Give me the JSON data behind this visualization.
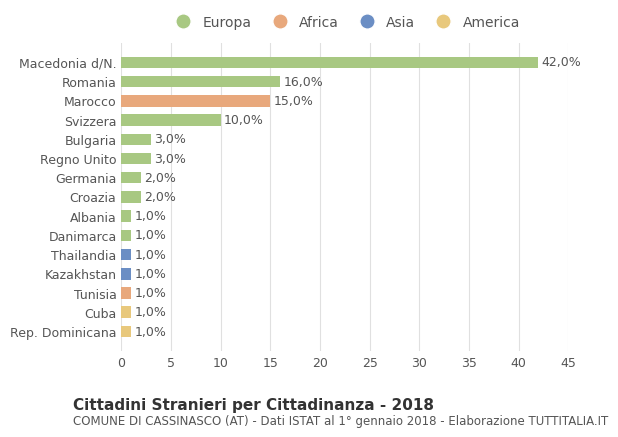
{
  "countries": [
    "Macedonia d/N.",
    "Romania",
    "Marocco",
    "Svizzera",
    "Bulgaria",
    "Regno Unito",
    "Germania",
    "Croazia",
    "Albania",
    "Danimarca",
    "Thailandia",
    "Kazakhstan",
    "Tunisia",
    "Cuba",
    "Rep. Dominicana"
  ],
  "values": [
    42.0,
    16.0,
    15.0,
    10.0,
    3.0,
    3.0,
    2.0,
    2.0,
    1.0,
    1.0,
    1.0,
    1.0,
    1.0,
    1.0,
    1.0
  ],
  "labels": [
    "42,0%",
    "16,0%",
    "15,0%",
    "10,0%",
    "3,0%",
    "3,0%",
    "2,0%",
    "2,0%",
    "1,0%",
    "1,0%",
    "1,0%",
    "1,0%",
    "1,0%",
    "1,0%",
    "1,0%"
  ],
  "continents": [
    "Europa",
    "Europa",
    "Africa",
    "Europa",
    "Europa",
    "Europa",
    "Europa",
    "Europa",
    "Europa",
    "Europa",
    "Asia",
    "Asia",
    "Africa",
    "America",
    "America"
  ],
  "continent_colors": {
    "Europa": "#a8c882",
    "Africa": "#e8a87c",
    "Asia": "#6b8ec4",
    "America": "#e8c87c"
  },
  "legend_order": [
    "Europa",
    "Africa",
    "Asia",
    "America"
  ],
  "xlim": [
    0,
    45
  ],
  "xticks": [
    0,
    5,
    10,
    15,
    20,
    25,
    30,
    35,
    40,
    45
  ],
  "title": "Cittadini Stranieri per Cittadinanza - 2018",
  "subtitle": "COMUNE DI CASSINASCO (AT) - Dati ISTAT al 1° gennaio 2018 - Elaborazione TUTTITALIA.IT",
  "bg_color": "#ffffff",
  "grid_color": "#e0e0e0",
  "bar_height": 0.6,
  "title_fontsize": 11,
  "subtitle_fontsize": 8.5,
  "label_fontsize": 9,
  "tick_fontsize": 9,
  "legend_fontsize": 10
}
